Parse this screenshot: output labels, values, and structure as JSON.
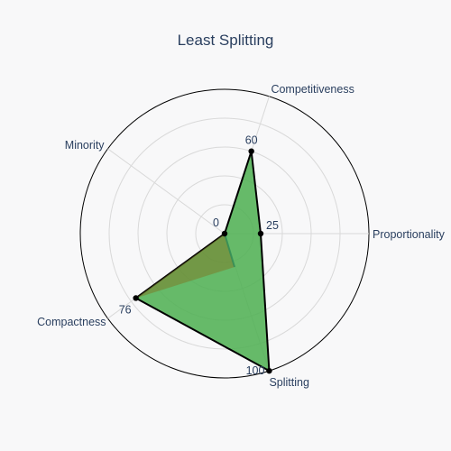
{
  "chart_data": {
    "type": "radar",
    "title": "Least Splitting",
    "axes": [
      "Proportionality",
      "Competitiveness",
      "Minority",
      "Compactness",
      "Splitting"
    ],
    "series": [
      {
        "values": [
          25,
          60,
          0,
          76,
          100
        ],
        "value_labels": [
          "25",
          "60",
          "0",
          "76",
          "100"
        ],
        "fill_color": "#4caf50",
        "line_color": "#000000",
        "marker_color": "#000000",
        "fill_opacity": 0.85
      }
    ],
    "inner_overlay": {
      "values": [
        0,
        0,
        0,
        0,
        10
      ],
      "color": "#7b7b2a"
    },
    "range": [
      0,
      100
    ],
    "grid": true,
    "grid_color": "#d9d9d9",
    "outer_ring_color": "#000000",
    "spoke_color": "#d9d9d9",
    "background": "#f8f8f9"
  }
}
